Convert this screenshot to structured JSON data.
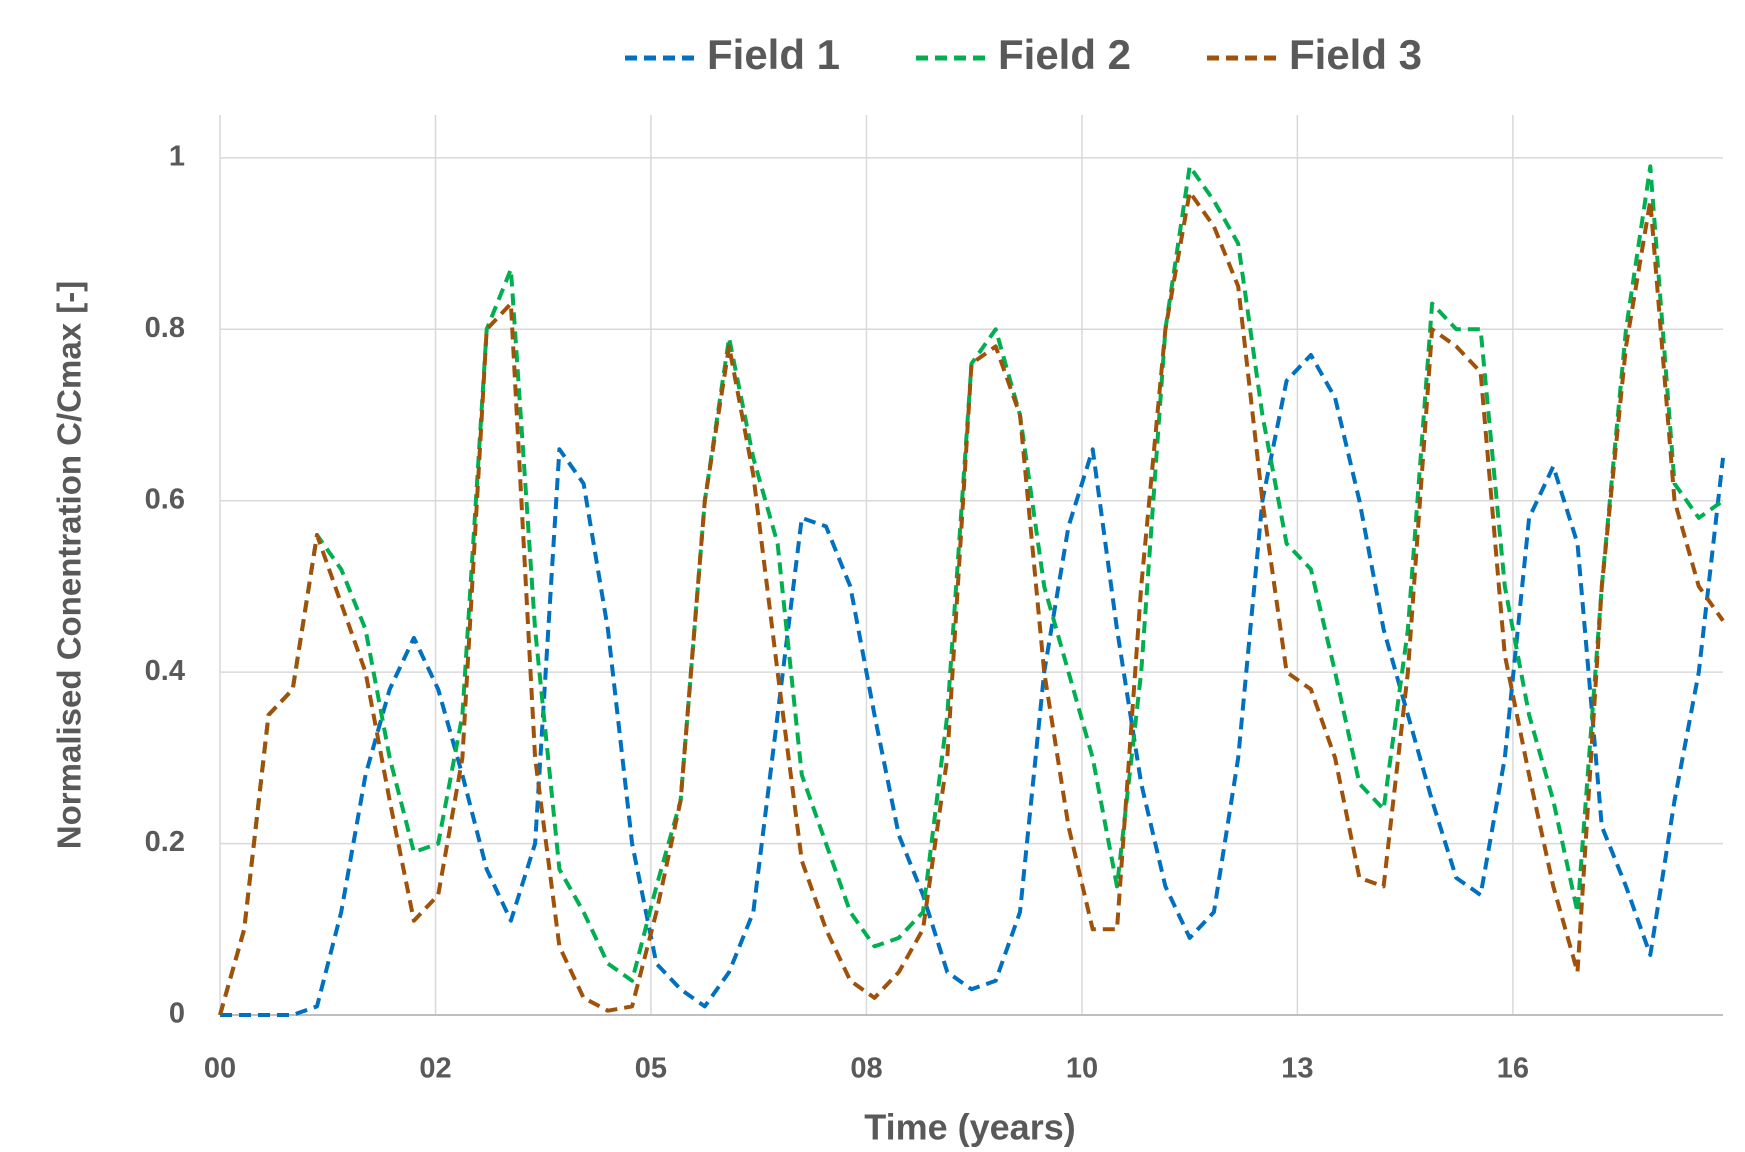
{
  "chart_data": {
    "type": "line",
    "x_label": "Time (years)",
    "y_label": "Normalised Conentration C/Cmax [-]",
    "x": [
      0,
      0.3,
      0.6,
      0.9,
      1.2,
      1.5,
      1.8,
      2.1,
      2.4,
      2.7,
      3.0,
      3.3,
      3.6,
      3.9,
      4.2,
      4.5,
      4.8,
      5.1,
      5.4,
      5.7,
      6.0,
      6.3,
      6.6,
      6.9,
      7.2,
      7.5,
      7.8,
      8.1,
      8.4,
      8.7,
      9.0,
      9.3,
      9.6,
      9.9,
      10.2,
      10.5,
      10.8,
      11.1,
      11.4,
      11.7,
      12.0,
      12.3,
      12.6,
      12.9,
      13.2,
      13.5,
      13.8,
      14.1,
      14.4,
      14.7,
      15.0,
      15.3,
      15.6,
      15.9,
      16.2,
      16.5,
      16.8,
      17.1,
      17.4,
      17.7,
      18.0,
      18.3,
      18.6
    ],
    "series": [
      {
        "name": "Field 1",
        "color": "#0070c0",
        "values": [
          0,
          0,
          0,
          0,
          0.01,
          0.12,
          0.28,
          0.38,
          0.44,
          0.38,
          0.28,
          0.17,
          0.11,
          0.2,
          0.66,
          0.62,
          0.45,
          0.2,
          0.06,
          0.03,
          0.01,
          0.05,
          0.12,
          0.35,
          0.58,
          0.57,
          0.5,
          0.35,
          0.21,
          0.14,
          0.05,
          0.03,
          0.04,
          0.12,
          0.4,
          0.57,
          0.66,
          0.45,
          0.27,
          0.15,
          0.09,
          0.12,
          0.3,
          0.6,
          0.74,
          0.77,
          0.72,
          0.6,
          0.45,
          0.35,
          0.25,
          0.16,
          0.14,
          0.3,
          0.58,
          0.64,
          0.55,
          0.22,
          0.15,
          0.07,
          0.25,
          0.4,
          0.65
        ]
      },
      {
        "name": "Field 2",
        "color": "#00b050",
        "values": [
          0,
          0.1,
          0.35,
          0.38,
          0.56,
          0.52,
          0.45,
          0.3,
          0.19,
          0.2,
          0.35,
          0.8,
          0.87,
          0.45,
          0.17,
          0.12,
          0.06,
          0.04,
          0.15,
          0.25,
          0.6,
          0.79,
          0.65,
          0.55,
          0.28,
          0.2,
          0.12,
          0.08,
          0.09,
          0.12,
          0.35,
          0.76,
          0.8,
          0.7,
          0.5,
          0.4,
          0.3,
          0.15,
          0.4,
          0.8,
          0.99,
          0.95,
          0.9,
          0.7,
          0.55,
          0.52,
          0.4,
          0.27,
          0.24,
          0.45,
          0.83,
          0.8,
          0.8,
          0.5,
          0.35,
          0.25,
          0.12,
          0.5,
          0.8,
          0.99,
          0.62,
          0.58,
          0.6
        ]
      },
      {
        "name": "Field 3",
        "color": "#a0520a",
        "values": [
          0,
          0.1,
          0.35,
          0.38,
          0.56,
          0.48,
          0.4,
          0.25,
          0.11,
          0.14,
          0.3,
          0.8,
          0.83,
          0.3,
          0.08,
          0.02,
          0.005,
          0.01,
          0.12,
          0.25,
          0.6,
          0.78,
          0.63,
          0.4,
          0.18,
          0.1,
          0.04,
          0.02,
          0.05,
          0.1,
          0.3,
          0.76,
          0.78,
          0.7,
          0.4,
          0.22,
          0.1,
          0.1,
          0.5,
          0.8,
          0.96,
          0.92,
          0.85,
          0.6,
          0.4,
          0.38,
          0.3,
          0.16,
          0.15,
          0.4,
          0.8,
          0.78,
          0.75,
          0.42,
          0.28,
          0.15,
          0.05,
          0.5,
          0.78,
          0.95,
          0.6,
          0.5,
          0.46
        ]
      }
    ],
    "xlim": [
      0,
      18.6
    ],
    "xticks": [
      {
        "value": 0,
        "label": "00"
      },
      {
        "value": 2.667,
        "label": "02"
      },
      {
        "value": 5.333,
        "label": "05"
      },
      {
        "value": 8,
        "label": "08"
      },
      {
        "value": 10.667,
        "label": "10"
      },
      {
        "value": 13.333,
        "label": "13"
      },
      {
        "value": 16,
        "label": "16"
      }
    ],
    "ylim": [
      0,
      1.05
    ],
    "yticks": [
      0,
      0.2,
      0.4,
      0.6,
      0.8,
      1
    ],
    "grid": true,
    "legend": "top"
  }
}
